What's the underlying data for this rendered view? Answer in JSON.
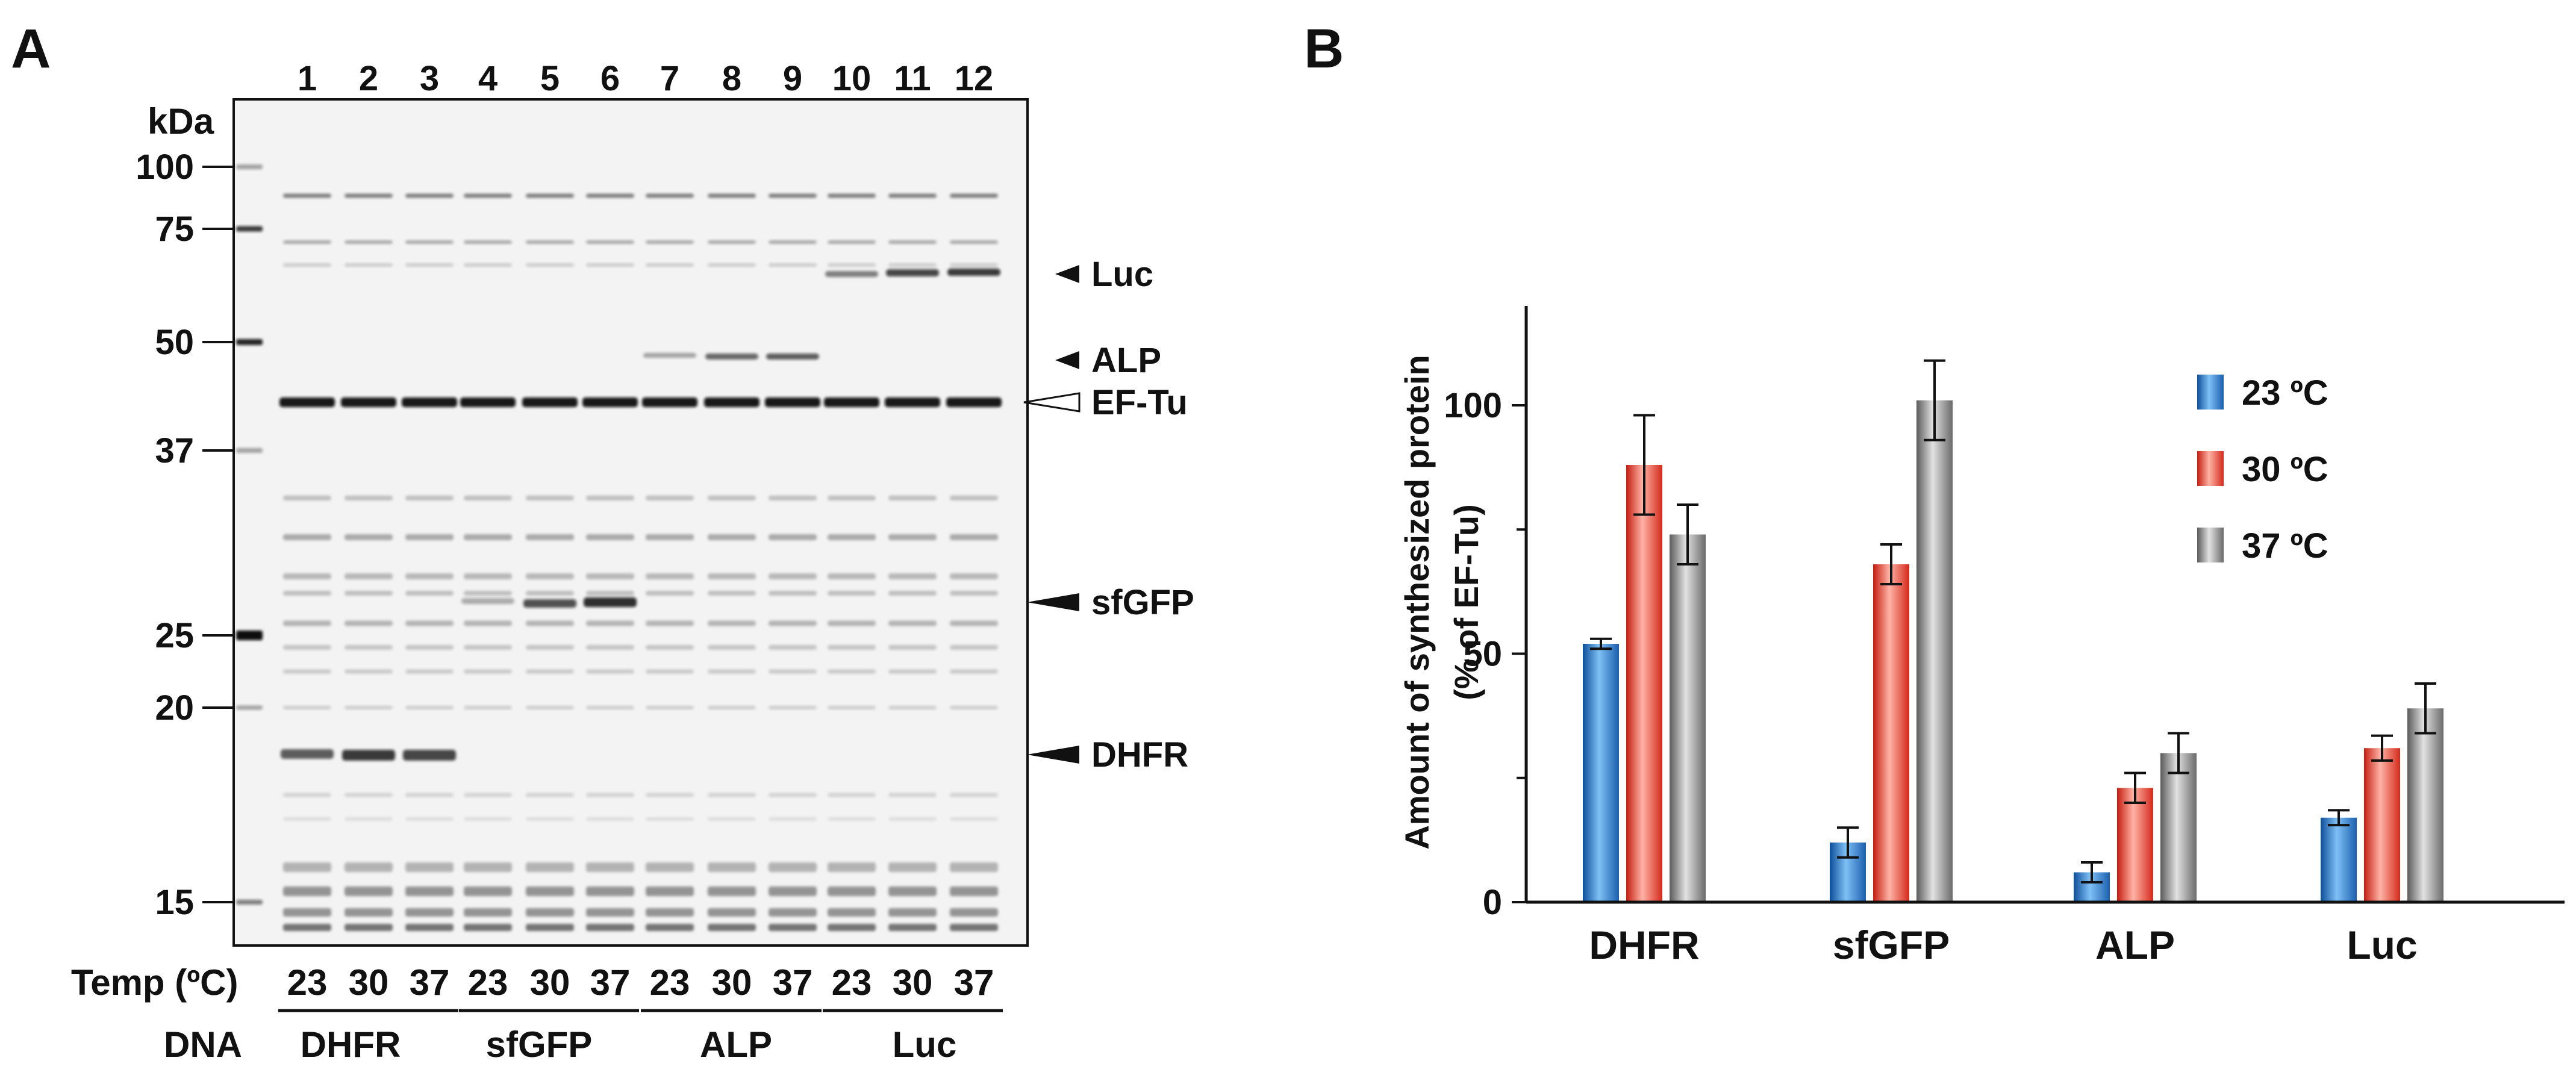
{
  "panelA": {
    "label": "A",
    "kda_header": "kDa",
    "markers": [
      {
        "kda": "100"
      },
      {
        "kda": "75"
      },
      {
        "kda": "50"
      },
      {
        "kda": "37"
      },
      {
        "kda": "25"
      },
      {
        "kda": "20"
      },
      {
        "kda": "15"
      }
    ],
    "lanes": [
      "1",
      "2",
      "3",
      "4",
      "5",
      "6",
      "7",
      "8",
      "9",
      "10",
      "11",
      "12"
    ],
    "temps": [
      "23",
      "30",
      "37",
      "23",
      "30",
      "37",
      "23",
      "30",
      "37",
      "23",
      "30",
      "37"
    ],
    "temp_label": "Temp (ºC)",
    "dna_label": "DNA",
    "dna_groups": [
      "DHFR",
      "sfGFP",
      "ALP",
      "Luc"
    ],
    "band_labels": [
      "Luc",
      "ALP",
      "EF-Tu",
      "sfGFP",
      "DHFR"
    ]
  },
  "panelB": {
    "label": "B"
  },
  "chart_data": {
    "type": "bar",
    "categories": [
      "DHFR",
      "sfGFP",
      "ALP",
      "Luc"
    ],
    "series": [
      {
        "name": "23 ºC",
        "color": "#2a7fd0",
        "values": [
          52,
          12,
          6,
          17
        ],
        "errors": [
          1,
          3,
          2,
          1.5
        ]
      },
      {
        "name": "30 ºC",
        "color": "#ee3b2f",
        "values": [
          88,
          68,
          23,
          31
        ],
        "errors": [
          10,
          4,
          3,
          2.5
        ]
      },
      {
        "name": "37 ºC",
        "color": "#8f8f8f",
        "values": [
          74,
          101,
          30,
          39
        ],
        "errors": [
          6,
          8,
          4,
          5
        ]
      }
    ],
    "ylabel_line1": "Amount of synthesized protein",
    "ylabel_line2": "(% of EF-Tu)",
    "yticks": [
      "0",
      "50",
      "100"
    ],
    "ylim": [
      0,
      120
    ],
    "legend_position": "top-right"
  }
}
